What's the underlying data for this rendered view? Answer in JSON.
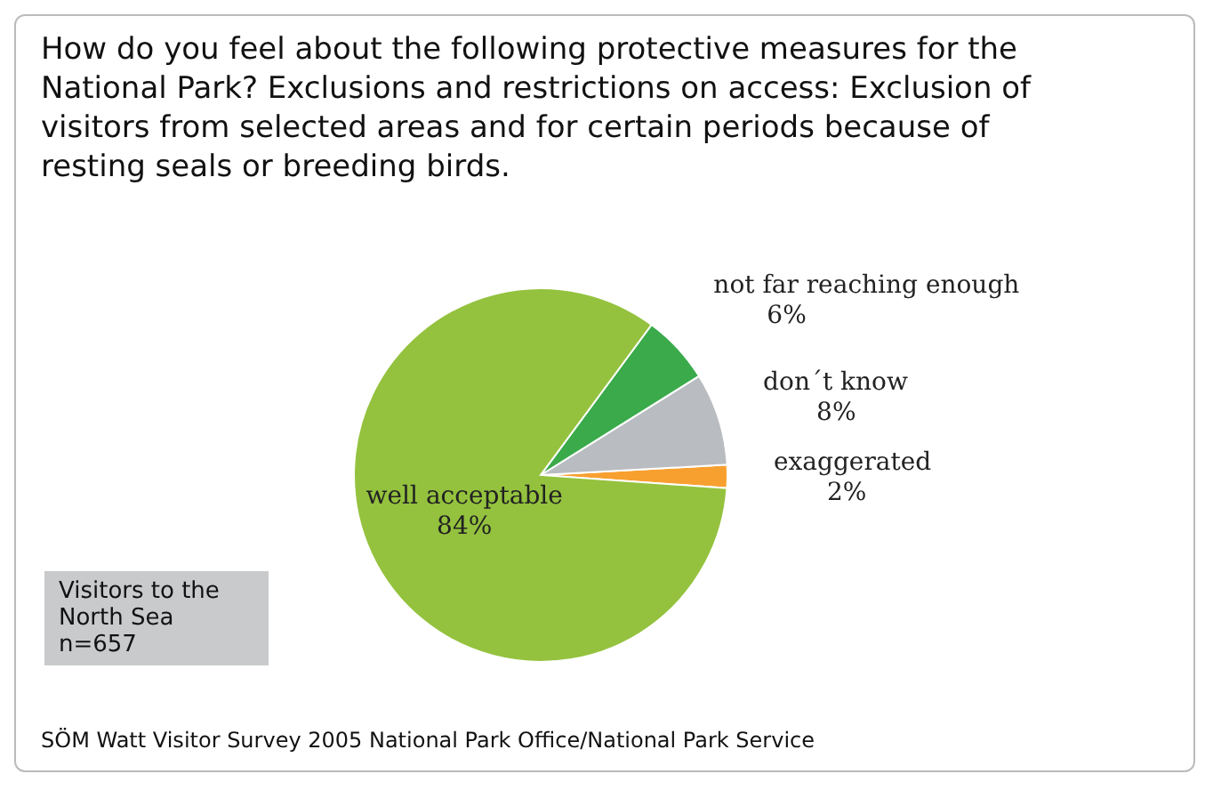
{
  "chart_data": {
    "type": "pie",
    "title": "How do you feel about the following protective measures for the National Park? Exclusions and restrictions on access: Exclusion of visitors from selected areas and for certain periods because of resting seals or breeding birds.",
    "categories": [
      "exaggerated",
      "don´t know",
      "not far reaching enough",
      "well acceptable"
    ],
    "values": [
      2,
      8,
      6,
      84
    ],
    "colors": [
      "#f7a030",
      "#b9bcc0",
      "#3aaa4a",
      "#94c23e"
    ],
    "value_labels": [
      "2%",
      "8%",
      "6%",
      "84%"
    ],
    "data_labels": true,
    "annotations": [
      "Visitors to the North Sea n=657",
      "SÖM Watt Visitor Survey 2005 National Park Office/National Park Service"
    ]
  }
}
